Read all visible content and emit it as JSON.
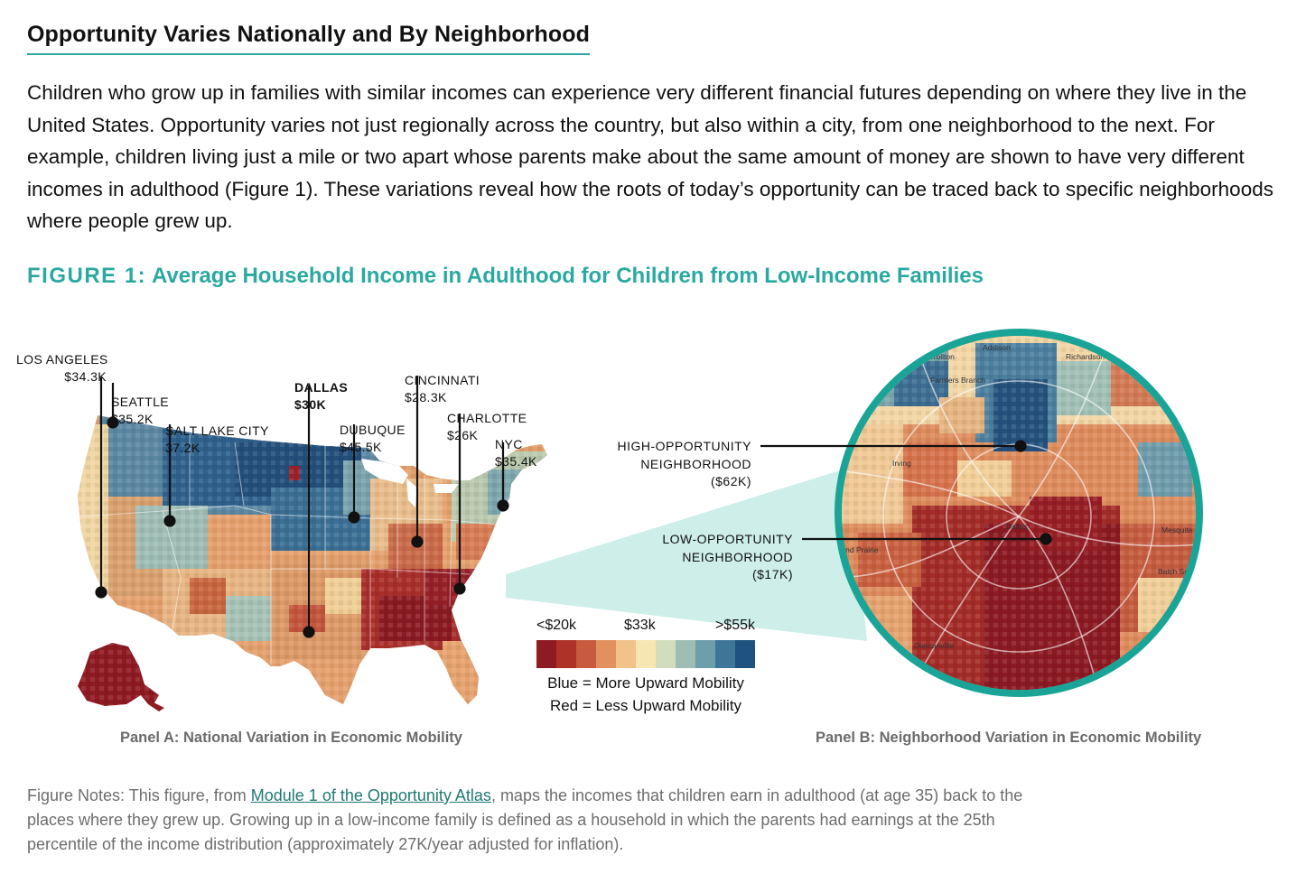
{
  "article": {
    "title": "Opportunity Varies Nationally and By Neighborhood",
    "intro": "Children who grow up in families with similar incomes can experience very different financial futures depending on where they live in the United States. Opportunity varies not just regionally across the country, but also within a city, from one neighborhood to the next. For example, children living just a mile or two apart whose parents make about the same amount of money are shown to have very different incomes in adulthood (Figure 1). These variations reveal how the roots of today’s opportunity can be traced back to specific neighborhoods where people grew up."
  },
  "figure": {
    "number": "FIGURE 1:",
    "title": "Average Household Income in Adulthood for Children from Low-Income Families",
    "panel_a_caption": "Panel A: National Variation in Economic Mobility",
    "panel_b_caption": "Panel B: Neighborhood Variation in Economic Mobility"
  },
  "cities": [
    {
      "name": "LOS ANGELES",
      "value": "$34.3K",
      "bold": false
    },
    {
      "name": "SEATTLE",
      "value": "$35.2K",
      "bold": false
    },
    {
      "name": "SALT LAKE CITY",
      "value": "37.2K",
      "bold": false
    },
    {
      "name": "DALLAS",
      "value": "$30K",
      "bold": true
    },
    {
      "name": "DUBUQUE",
      "value": "$45.5K",
      "bold": false
    },
    {
      "name": "CINCINNATI",
      "value": "$28.3K",
      "bold": false
    },
    {
      "name": "CHARLOTTE",
      "value": "$26K",
      "bold": false
    },
    {
      "name": "NYC",
      "value": "$35.4K",
      "bold": false
    }
  ],
  "neighborhoods": {
    "high": {
      "line1": "HIGH-OPPORTUNITY",
      "line2": "NEIGHBORHOOD",
      "value": "($62K)"
    },
    "low": {
      "line1": "LOW-OPPORTUNITY",
      "line2": "NEIGHBORHOOD",
      "value": "($17K)"
    }
  },
  "dallas_map_places": [
    "Addison",
    "Farmers Branch",
    "Irving",
    "Grand Prairie",
    "Dallas",
    "Mesquite",
    "Balch Springs",
    "Duncanville",
    "Richardson",
    "Carrollton"
  ],
  "legend": {
    "low_label": "<$20k",
    "mid_label": "$33k",
    "high_label": ">$55k",
    "colors": [
      "#8e1a22",
      "#ae3228",
      "#c85a3e",
      "#e1915f",
      "#f1c38b",
      "#f7e6b2",
      "#d2ddbe",
      "#9ebdb4",
      "#6f9eab",
      "#3e7698",
      "#1f527e"
    ],
    "note_blue": "Blue = More Upward Mobility",
    "note_red": "Red = Less Upward Mobility"
  },
  "notes": {
    "prefix": "Figure Notes: This figure, from ",
    "link": "Module 1 of the Opportunity Atlas",
    "suffix": ", maps the incomes that children earn in adulthood (at age 35) back to the places where they grew up. Growing up in a low-income family is defined as a household in which the parents had earnings at the 25th percentile of the income distribution (approximately 27K/year adjusted for inflation)."
  },
  "colors": {
    "accent": "#2aa9a0",
    "teal_ring": "#1aa497",
    "zoom_fill": "#cfeeea"
  }
}
